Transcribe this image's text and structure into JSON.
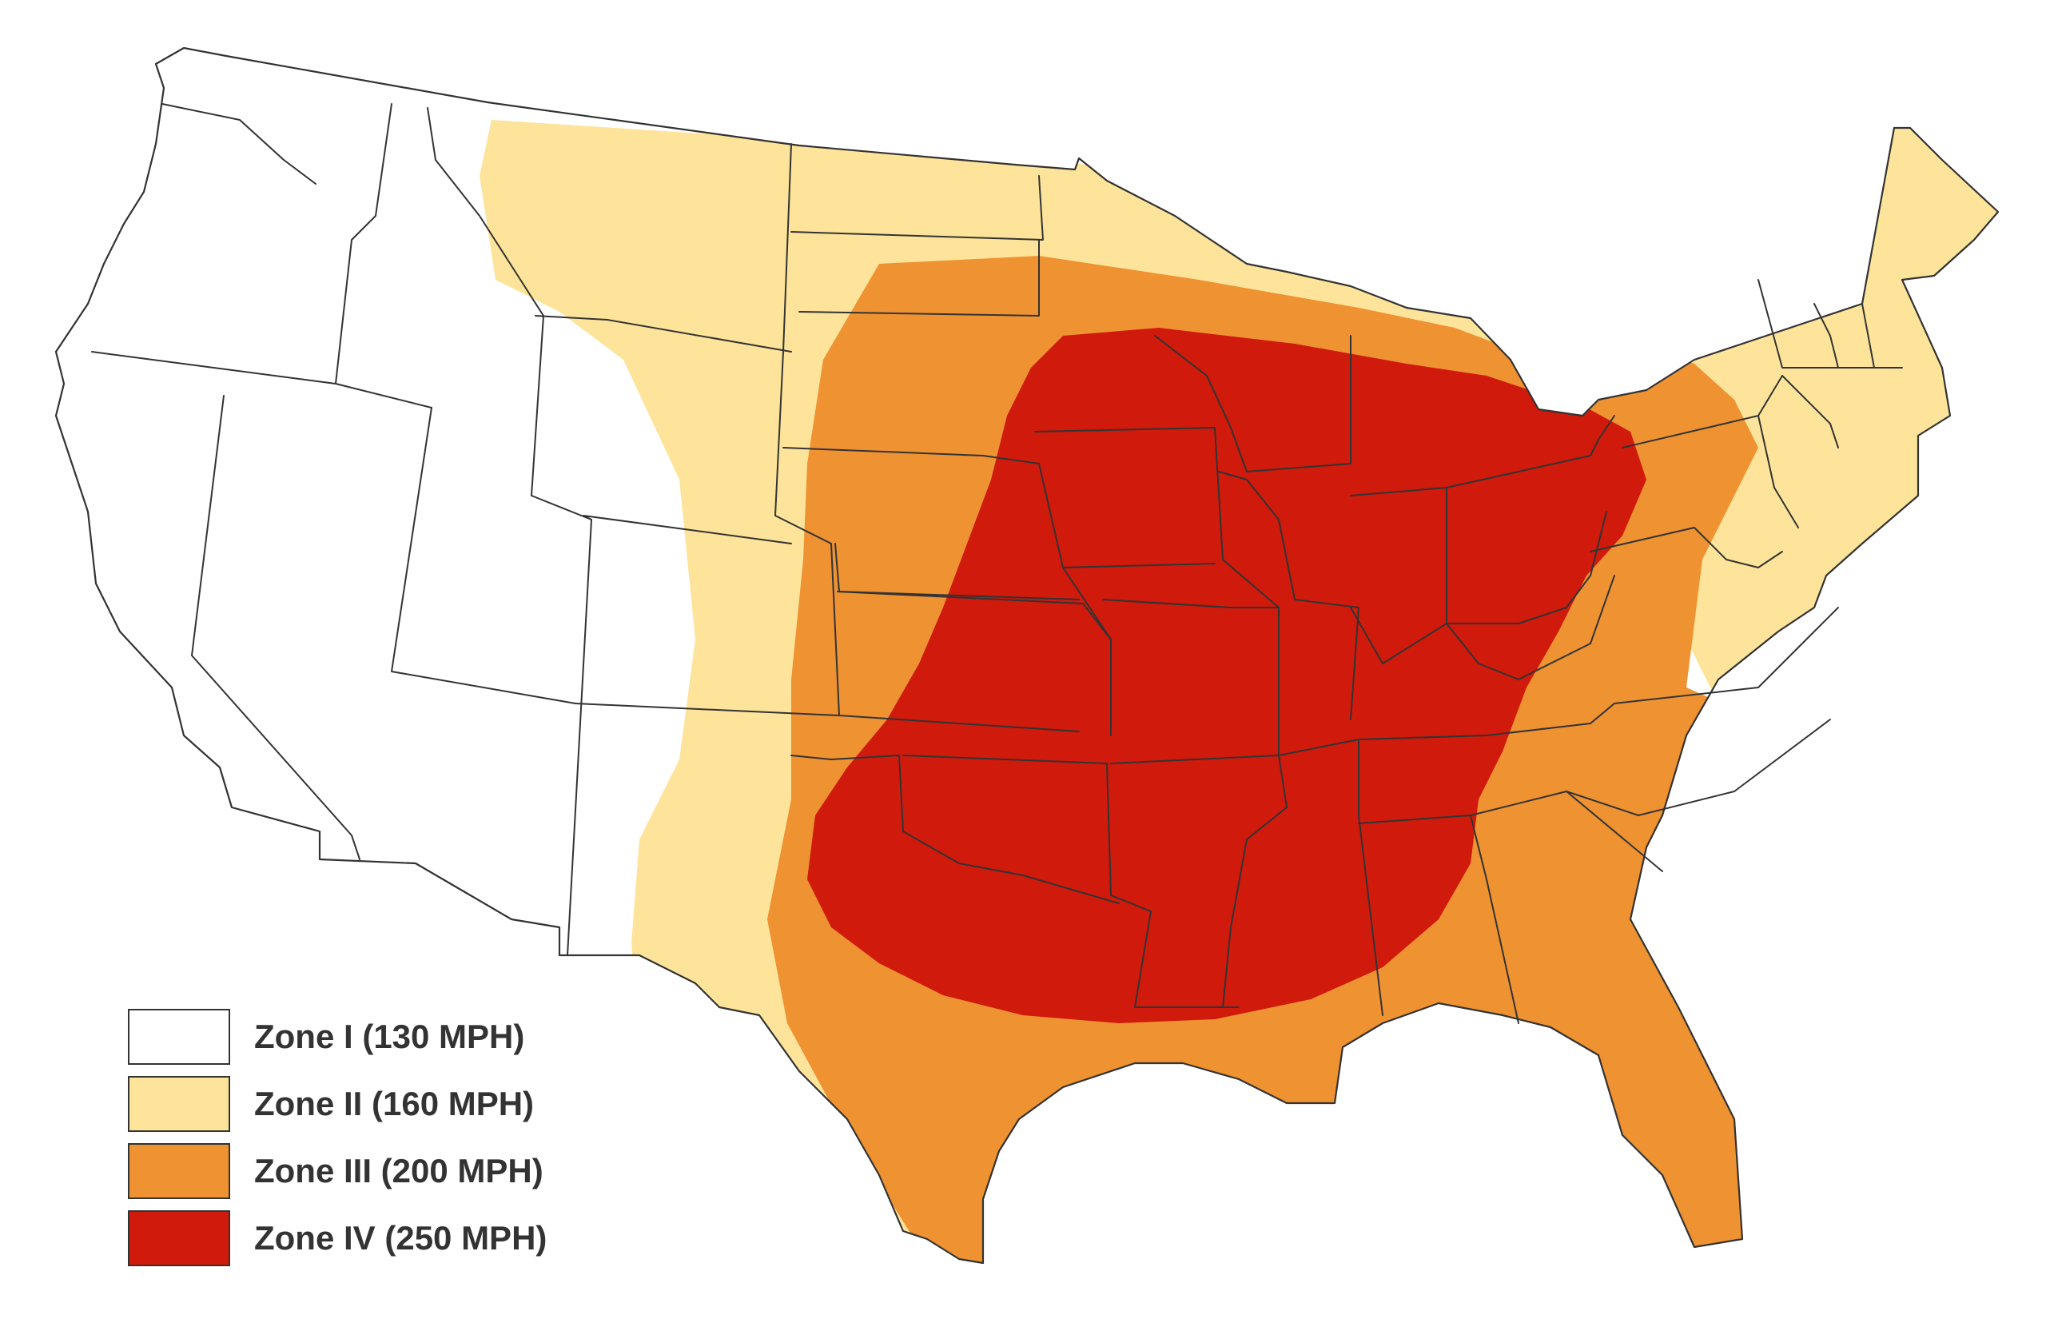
{
  "map": {
    "colors": {
      "zone1": "#ffffff",
      "zone2": "#fde49a",
      "zone3": "#ee9232",
      "zone4": "#cf1a0c",
      "border": "#333333"
    }
  },
  "legend": {
    "items": [
      {
        "label": "Zone I (130 MPH)",
        "color": "#ffffff"
      },
      {
        "label": "Zone II (160 MPH)",
        "color": "#fde49a"
      },
      {
        "label": "Zone III (200 MPH)",
        "color": "#ee9232"
      },
      {
        "label": "Zone IV (250 MPH)",
        "color": "#cf1a0c"
      }
    ]
  }
}
